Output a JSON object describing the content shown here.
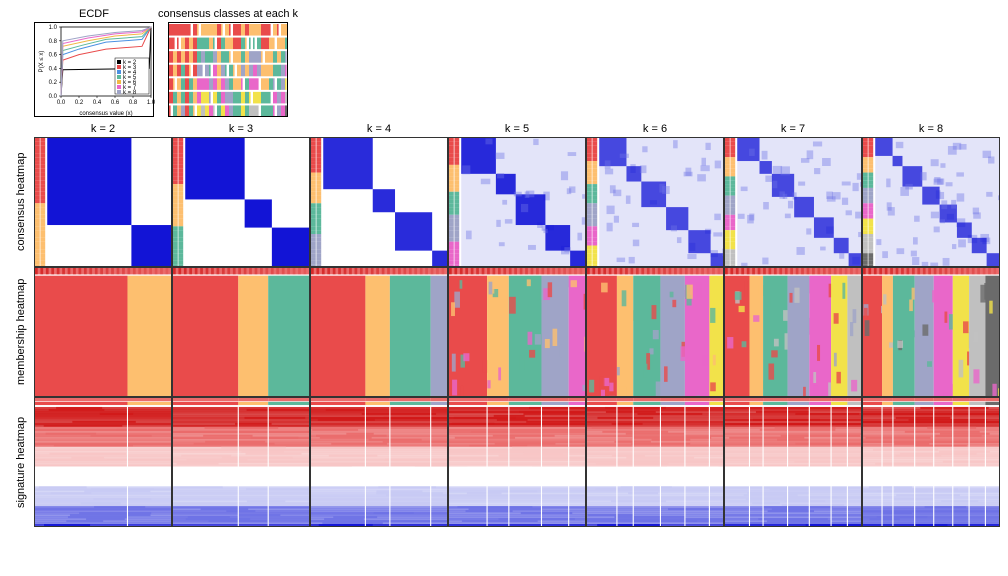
{
  "titles": {
    "ecdf": "ECDF",
    "consensus_classes": "consensus classes at each k"
  },
  "k_values": [
    2,
    3,
    4,
    5,
    6,
    7,
    8
  ],
  "k_labels": [
    "k = 2",
    "k = 3",
    "k = 4",
    "k = 5",
    "k = 6",
    "k = 7",
    "k = 8"
  ],
  "row_labels": [
    "consensus heatmap",
    "membership heatmap",
    "signature heatmap"
  ],
  "palette": {
    "cluster": [
      "#e94b4b",
      "#fdbf6f",
      "#5cb89b",
      "#9fa4c7",
      "#e967c9",
      "#f2e24a",
      "#c0c0c0",
      "#6b6b6b"
    ],
    "blue_strong": "#1214d6",
    "blue_mid": "#6e72e6",
    "blue_light": "#c8caF4",
    "red_strong": "#d11919",
    "red_mid": "#ea6b6b",
    "red_light": "#f7c5c5",
    "white": "#ffffff",
    "grid_border": "#333333"
  },
  "ecdf": {
    "xlabel": "consensus value (x)",
    "ylabel": "P(X ≤ x)",
    "xlim": [
      0,
      1
    ],
    "ylim": [
      0,
      1
    ],
    "xticks": [
      0.0,
      0.2,
      0.4,
      0.6,
      0.8,
      1.0
    ],
    "yticks": [
      0.0,
      0.2,
      0.4,
      0.6,
      0.8,
      1.0
    ],
    "legend_items": [
      "k = 2",
      "k = 3",
      "k = 4",
      "k = 5",
      "k = 6",
      "k = 7",
      "k = 8"
    ],
    "legend_colors": [
      "#000000",
      "#e94b4b",
      "#4a90e2",
      "#5cb89b",
      "#f2b844",
      "#e967c9",
      "#9fa4c7"
    ],
    "lines": [
      {
        "color": "#000000",
        "pts": [
          [
            0,
            0
          ],
          [
            0.02,
            0.38
          ],
          [
            0.98,
            0.4
          ],
          [
            1,
            1
          ]
        ]
      },
      {
        "color": "#e94b4b",
        "pts": [
          [
            0,
            0
          ],
          [
            0.02,
            0.52
          ],
          [
            0.2,
            0.6
          ],
          [
            0.5,
            0.68
          ],
          [
            0.9,
            0.72
          ],
          [
            1,
            1
          ]
        ]
      },
      {
        "color": "#4a90e2",
        "pts": [
          [
            0,
            0
          ],
          [
            0.02,
            0.6
          ],
          [
            0.2,
            0.68
          ],
          [
            0.5,
            0.78
          ],
          [
            0.9,
            0.82
          ],
          [
            1,
            1
          ]
        ]
      },
      {
        "color": "#5cb89b",
        "pts": [
          [
            0,
            0
          ],
          [
            0.02,
            0.66
          ],
          [
            0.25,
            0.74
          ],
          [
            0.5,
            0.82
          ],
          [
            0.9,
            0.86
          ],
          [
            1,
            1
          ]
        ]
      },
      {
        "color": "#f2b844",
        "pts": [
          [
            0,
            0
          ],
          [
            0.02,
            0.72
          ],
          [
            0.3,
            0.8
          ],
          [
            0.6,
            0.87
          ],
          [
            0.9,
            0.9
          ],
          [
            1,
            1
          ]
        ]
      },
      {
        "color": "#e967c9",
        "pts": [
          [
            0,
            0
          ],
          [
            0.02,
            0.76
          ],
          [
            0.3,
            0.84
          ],
          [
            0.6,
            0.9
          ],
          [
            0.9,
            0.93
          ],
          [
            1,
            1
          ]
        ]
      },
      {
        "color": "#9fa4c7",
        "pts": [
          [
            0,
            0
          ],
          [
            0.02,
            0.8
          ],
          [
            0.3,
            0.87
          ],
          [
            0.6,
            0.92
          ],
          [
            0.9,
            0.95
          ],
          [
            1,
            1
          ]
        ]
      }
    ]
  },
  "consensus_classes": {
    "n_samples": 30,
    "note": "rows = k (2..8 top to bottom), cols = samples; color = cluster index"
  },
  "membership": {
    "proportions": {
      "2": [
        0.68,
        0.32
      ],
      "3": [
        0.48,
        0.22,
        0.3
      ],
      "4": [
        0.4,
        0.18,
        0.3,
        0.12
      ],
      "5": [
        0.28,
        0.16,
        0.24,
        0.2,
        0.12
      ],
      "6": [
        0.22,
        0.12,
        0.2,
        0.18,
        0.18,
        0.1
      ],
      "7": [
        0.18,
        0.1,
        0.18,
        0.16,
        0.16,
        0.12,
        0.1
      ],
      "8": [
        0.14,
        0.08,
        0.16,
        0.14,
        0.14,
        0.12,
        0.12,
        0.1
      ]
    }
  },
  "consensus_matrix": {
    "off_block_color": "#ffffff",
    "off_block_highk_color": "#d0d3f1",
    "annotation_bar_width": 6
  },
  "signature_heatmap": {
    "gradient": [
      "#d11919",
      "#ea6b6b",
      "#f7c5c5",
      "#ffffff",
      "#c8caF4",
      "#6e72e6",
      "#1214d6"
    ],
    "annotation_rows": 3
  }
}
